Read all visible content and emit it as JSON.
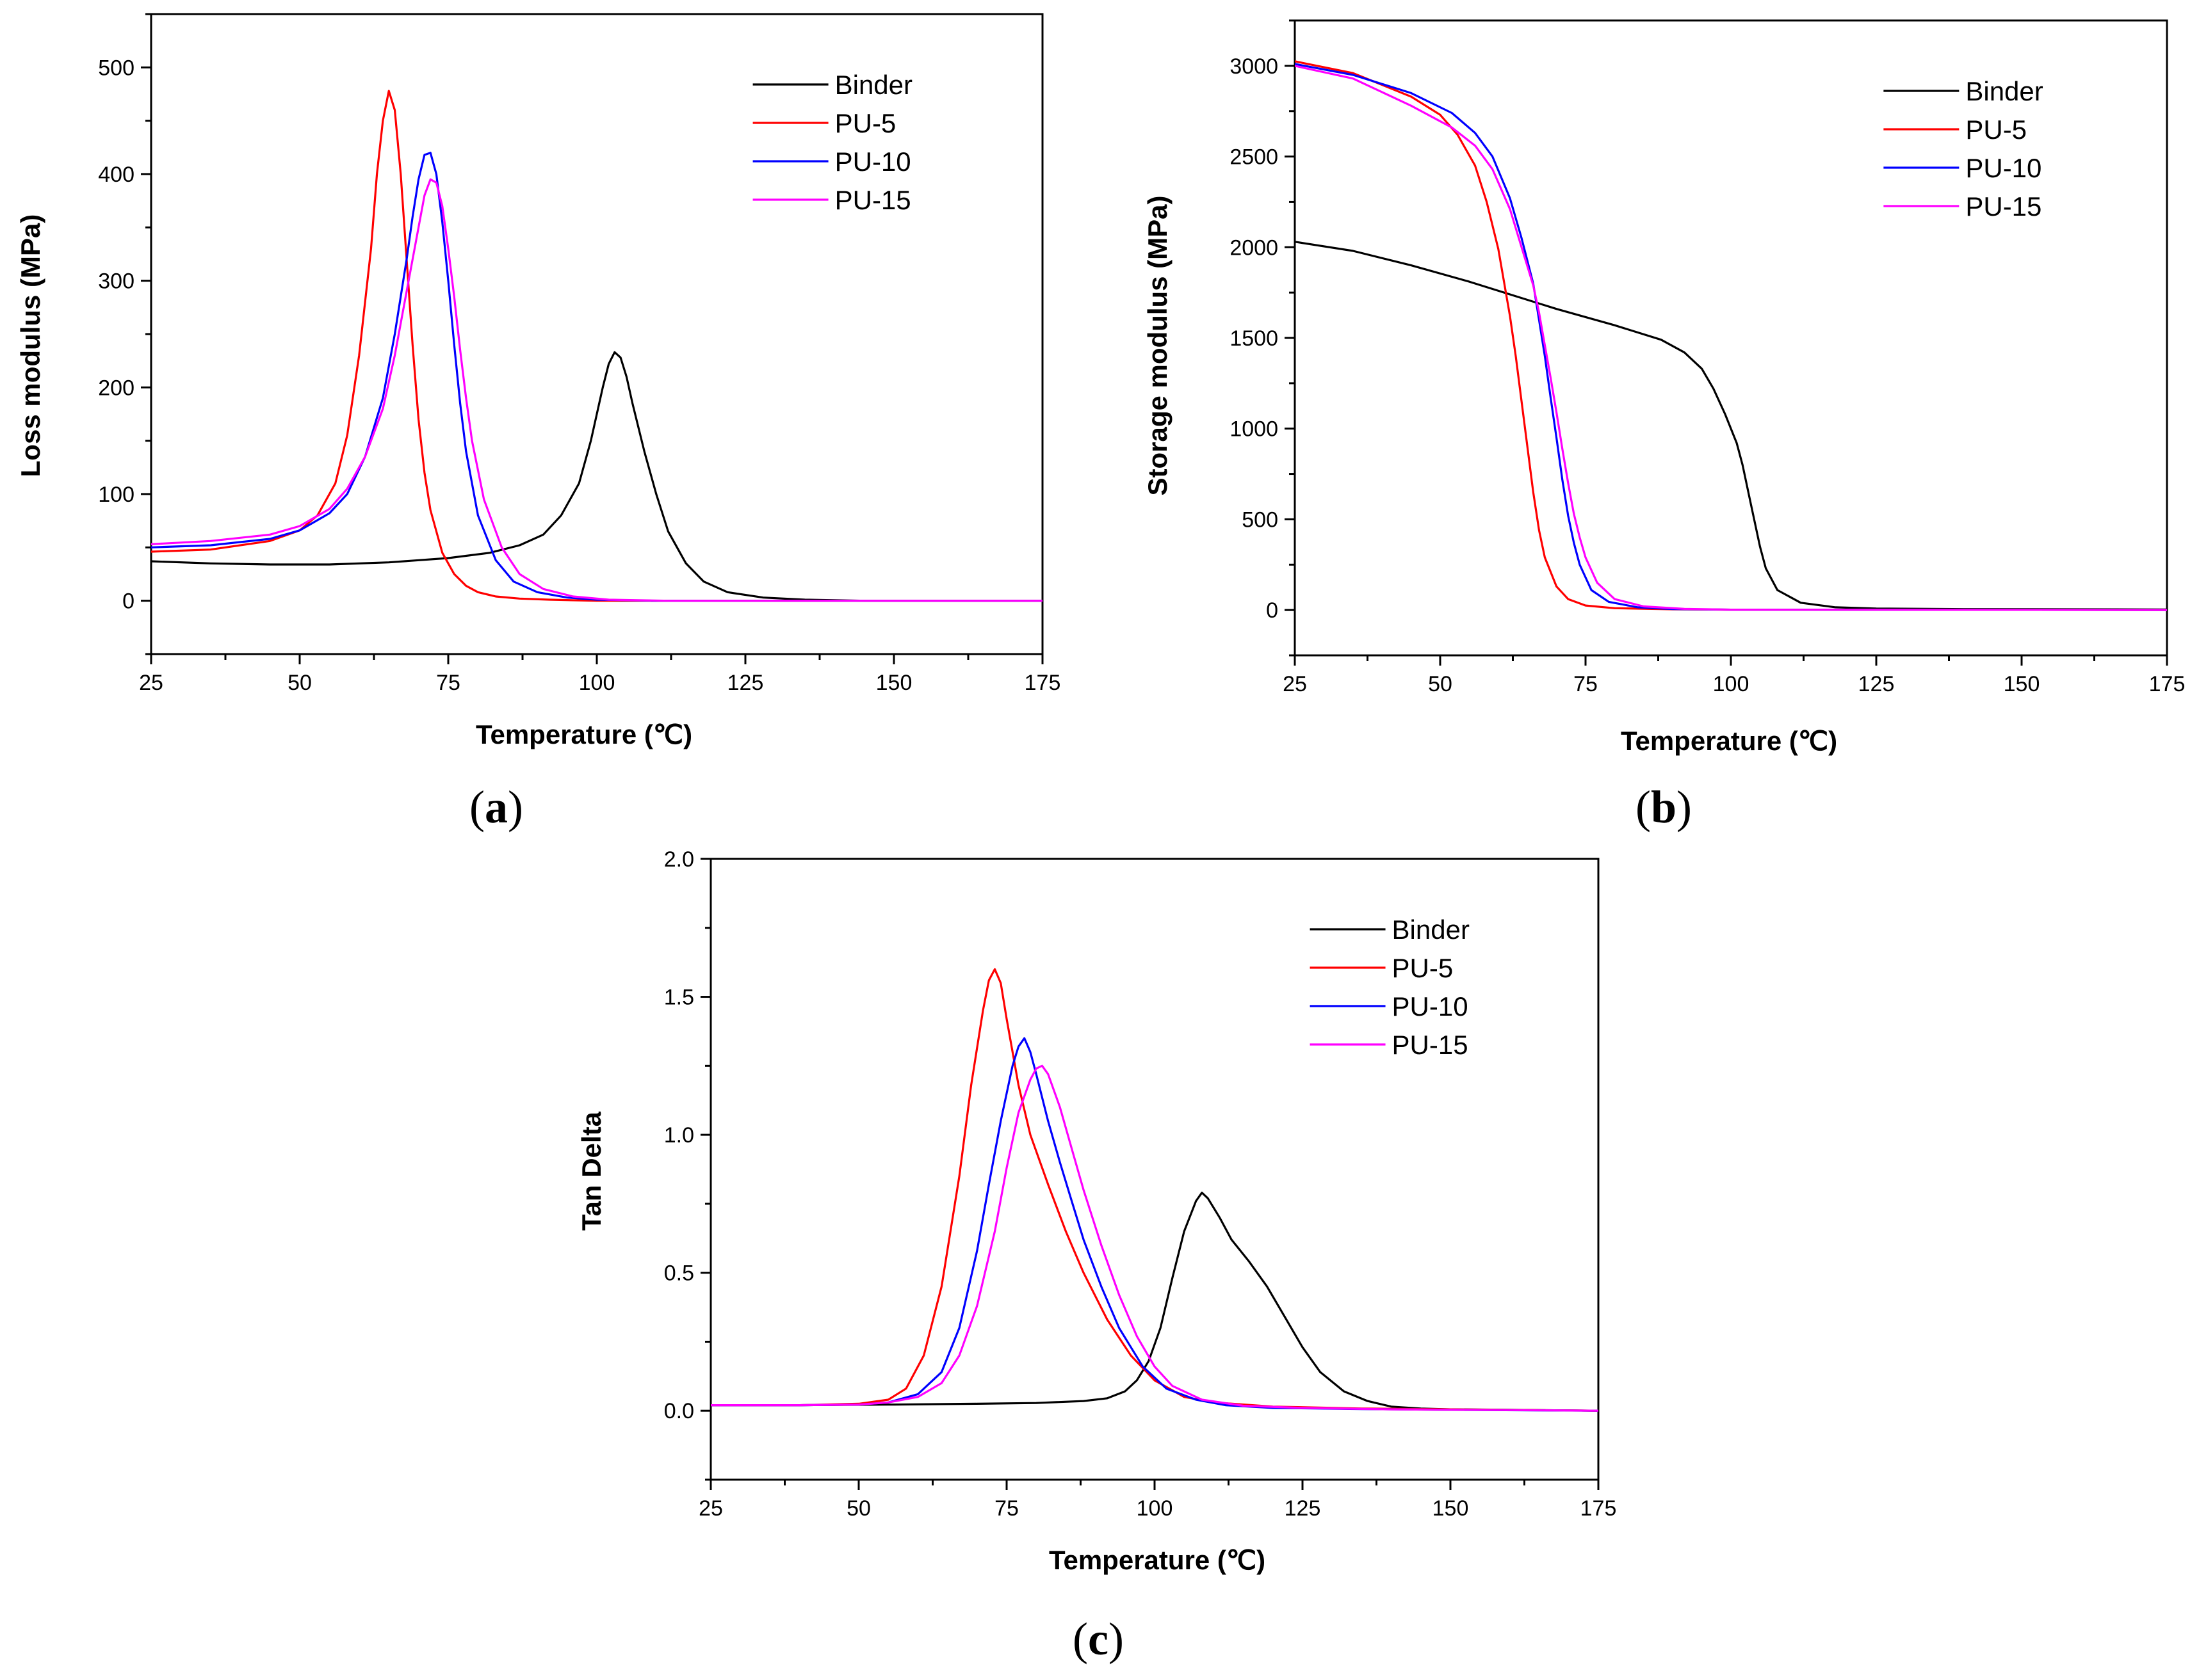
{
  "colors": {
    "Binder": "#000000",
    "PU-5": "#ff0000",
    "PU-10": "#0000ff",
    "PU-15": "#ff00ff"
  },
  "chart_data": [
    {
      "id": "a",
      "type": "line",
      "caption": "(a)",
      "caption_letter": "a",
      "xlabel": "Temperature (℃)",
      "ylabel": "Loss modulus (MPa)",
      "xlim": [
        25,
        175
      ],
      "ylim": [
        -50,
        550
      ],
      "xticks": [
        25,
        50,
        75,
        100,
        125,
        150,
        175
      ],
      "yticks": [
        0,
        100,
        200,
        300,
        400,
        500
      ],
      "legend_position": "top-right",
      "series": [
        {
          "name": "Binder",
          "x": [
            25,
            35,
            45,
            55,
            65,
            75,
            82,
            87,
            91,
            94,
            97,
            99,
            101,
            102,
            103,
            104,
            105,
            106,
            108,
            110,
            112,
            115,
            118,
            122,
            128,
            135,
            145,
            175
          ],
          "y": [
            37,
            35,
            34,
            34,
            36,
            40,
            45,
            52,
            62,
            80,
            110,
            150,
            200,
            222,
            233,
            228,
            210,
            185,
            140,
            100,
            65,
            35,
            18,
            8,
            3,
            1,
            0,
            0
          ]
        },
        {
          "name": "PU-5",
          "x": [
            25,
            35,
            45,
            50,
            53,
            56,
            58,
            60,
            62,
            63,
            64,
            65,
            66,
            67,
            68,
            69,
            70,
            71,
            72,
            74,
            76,
            78,
            80,
            83,
            87,
            92,
            100,
            175
          ],
          "y": [
            46,
            48,
            56,
            66,
            80,
            110,
            155,
            230,
            330,
            400,
            450,
            478,
            460,
            400,
            320,
            240,
            170,
            120,
            85,
            45,
            25,
            14,
            8,
            4,
            2,
            1,
            0,
            0
          ]
        },
        {
          "name": "PU-10",
          "x": [
            25,
            35,
            45,
            50,
            55,
            58,
            61,
            64,
            66,
            68,
            69,
            70,
            71,
            72,
            73,
            74,
            75,
            76,
            77,
            78,
            80,
            83,
            86,
            90,
            95,
            100,
            110,
            175
          ],
          "y": [
            50,
            52,
            58,
            66,
            82,
            100,
            135,
            190,
            250,
            320,
            360,
            395,
            418,
            420,
            400,
            355,
            300,
            240,
            185,
            140,
            80,
            38,
            18,
            8,
            3,
            1,
            0,
            0
          ]
        },
        {
          "name": "PU-15",
          "x": [
            25,
            35,
            45,
            50,
            55,
            58,
            61,
            64,
            66,
            68,
            70,
            71,
            72,
            73,
            74,
            75,
            76,
            77,
            78,
            79,
            81,
            84,
            87,
            91,
            96,
            102,
            112,
            175
          ],
          "y": [
            53,
            56,
            62,
            70,
            86,
            105,
            135,
            180,
            230,
            290,
            350,
            380,
            395,
            392,
            370,
            330,
            285,
            235,
            190,
            150,
            95,
            50,
            25,
            11,
            4,
            1,
            0,
            0
          ]
        }
      ]
    },
    {
      "id": "b",
      "type": "line",
      "caption": "(b)",
      "caption_letter": "b",
      "xlabel": "Temperature (℃)",
      "ylabel": "Storage modulus (MPa)",
      "xlim": [
        25,
        175
      ],
      "ylim": [
        -250,
        3250
      ],
      "xticks": [
        25,
        50,
        75,
        100,
        125,
        150,
        175
      ],
      "yticks": [
        0,
        500,
        1000,
        1500,
        2000,
        2500,
        3000
      ],
      "legend_position": "top-right",
      "series": [
        {
          "name": "Binder",
          "x": [
            25,
            35,
            45,
            55,
            62,
            70,
            80,
            88,
            92,
            95,
            97,
            99,
            101,
            102,
            103,
            104,
            105,
            106,
            108,
            112,
            118,
            125,
            140,
            175
          ],
          "y": [
            2030,
            1980,
            1900,
            1810,
            1740,
            1660,
            1570,
            1490,
            1420,
            1330,
            1220,
            1080,
            920,
            800,
            650,
            500,
            350,
            230,
            110,
            40,
            15,
            8,
            5,
            3
          ]
        },
        {
          "name": "PU-5",
          "x": [
            25,
            35,
            45,
            50,
            53,
            56,
            58,
            60,
            62,
            63,
            64,
            65,
            66,
            67,
            68,
            70,
            72,
            75,
            80,
            90,
            100,
            175
          ],
          "y": [
            3025,
            2960,
            2830,
            2730,
            2620,
            2450,
            2250,
            1990,
            1620,
            1400,
            1150,
            900,
            650,
            440,
            290,
            130,
            60,
            25,
            10,
            4,
            2,
            0
          ]
        },
        {
          "name": "PU-10",
          "x": [
            25,
            35,
            45,
            52,
            56,
            59,
            62,
            64,
            66,
            67,
            68,
            69,
            70,
            71,
            72,
            73,
            74,
            76,
            79,
            84,
            90,
            100,
            175
          ],
          "y": [
            3010,
            2950,
            2850,
            2740,
            2630,
            2500,
            2270,
            2050,
            1800,
            1600,
            1400,
            1170,
            950,
            720,
            520,
            370,
            250,
            110,
            45,
            15,
            5,
            2,
            0
          ]
        },
        {
          "name": "PU-15",
          "x": [
            25,
            35,
            45,
            52,
            56,
            59,
            62,
            64,
            66,
            67,
            68,
            69,
            70,
            71,
            72,
            73,
            74,
            75,
            77,
            80,
            85,
            92,
            100,
            175
          ],
          "y": [
            3000,
            2930,
            2780,
            2660,
            2560,
            2430,
            2210,
            2000,
            1790,
            1640,
            1460,
            1280,
            1090,
            890,
            700,
            530,
            400,
            290,
            150,
            60,
            20,
            6,
            2,
            0
          ]
        }
      ]
    },
    {
      "id": "c",
      "type": "line",
      "caption": "(c)",
      "caption_letter": "c",
      "xlabel": "Temperature (℃)",
      "ylabel": "Tan Delta",
      "xlim": [
        25,
        175
      ],
      "ylim": [
        -0.25,
        2.0
      ],
      "xticks": [
        25,
        50,
        75,
        100,
        125,
        150,
        175
      ],
      "yticks": [
        0.0,
        0.5,
        1.0,
        1.5,
        2.0
      ],
      "ytick_labels": [
        "0.0",
        "0.5",
        "1.0",
        "1.5",
        "2.0"
      ],
      "legend_position": "top-right",
      "series": [
        {
          "name": "Binder",
          "x": [
            25,
            40,
            55,
            70,
            80,
            88,
            92,
            95,
            97,
            99,
            101,
            103,
            105,
            107,
            108,
            109,
            111,
            113,
            116,
            119,
            122,
            125,
            128,
            132,
            136,
            140,
            145,
            150,
            160,
            175
          ],
          "y": [
            0.02,
            0.02,
            0.022,
            0.025,
            0.028,
            0.035,
            0.045,
            0.07,
            0.11,
            0.18,
            0.3,
            0.48,
            0.65,
            0.76,
            0.79,
            0.77,
            0.7,
            0.62,
            0.54,
            0.45,
            0.34,
            0.23,
            0.14,
            0.07,
            0.035,
            0.015,
            0.008,
            0.005,
            0.003,
            0.0
          ]
        },
        {
          "name": "PU-5",
          "x": [
            25,
            40,
            50,
            55,
            58,
            61,
            64,
            67,
            69,
            71,
            72,
            73,
            74,
            75,
            77,
            79,
            82,
            85,
            88,
            92,
            96,
            100,
            105,
            110,
            120,
            135,
            150,
            175
          ],
          "y": [
            0.02,
            0.02,
            0.025,
            0.04,
            0.08,
            0.2,
            0.45,
            0.85,
            1.18,
            1.45,
            1.56,
            1.6,
            1.55,
            1.42,
            1.18,
            1.0,
            0.82,
            0.65,
            0.5,
            0.33,
            0.2,
            0.11,
            0.05,
            0.03,
            0.015,
            0.008,
            0.005,
            0.0
          ]
        },
        {
          "name": "PU-10",
          "x": [
            25,
            40,
            50,
            55,
            60,
            64,
            67,
            70,
            72,
            74,
            76,
            77,
            78,
            79,
            80,
            82,
            84,
            86,
            88,
            91,
            94,
            98,
            102,
            107,
            112,
            120,
            135,
            150,
            175
          ],
          "y": [
            0.02,
            0.02,
            0.022,
            0.03,
            0.06,
            0.14,
            0.3,
            0.58,
            0.82,
            1.05,
            1.25,
            1.32,
            1.35,
            1.3,
            1.22,
            1.05,
            0.9,
            0.76,
            0.62,
            0.45,
            0.3,
            0.16,
            0.08,
            0.04,
            0.02,
            0.01,
            0.006,
            0.003,
            0.0
          ]
        },
        {
          "name": "PU-15",
          "x": [
            25,
            40,
            50,
            55,
            60,
            64,
            67,
            70,
            73,
            75,
            77,
            79,
            80,
            81,
            82,
            84,
            86,
            88,
            91,
            94,
            97,
            100,
            103,
            108,
            115,
            125,
            140,
            175
          ],
          "y": [
            0.02,
            0.02,
            0.022,
            0.03,
            0.05,
            0.1,
            0.2,
            0.38,
            0.65,
            0.88,
            1.08,
            1.2,
            1.24,
            1.25,
            1.22,
            1.1,
            0.95,
            0.8,
            0.6,
            0.42,
            0.27,
            0.16,
            0.09,
            0.04,
            0.018,
            0.01,
            0.005,
            0.0
          ]
        }
      ]
    }
  ]
}
